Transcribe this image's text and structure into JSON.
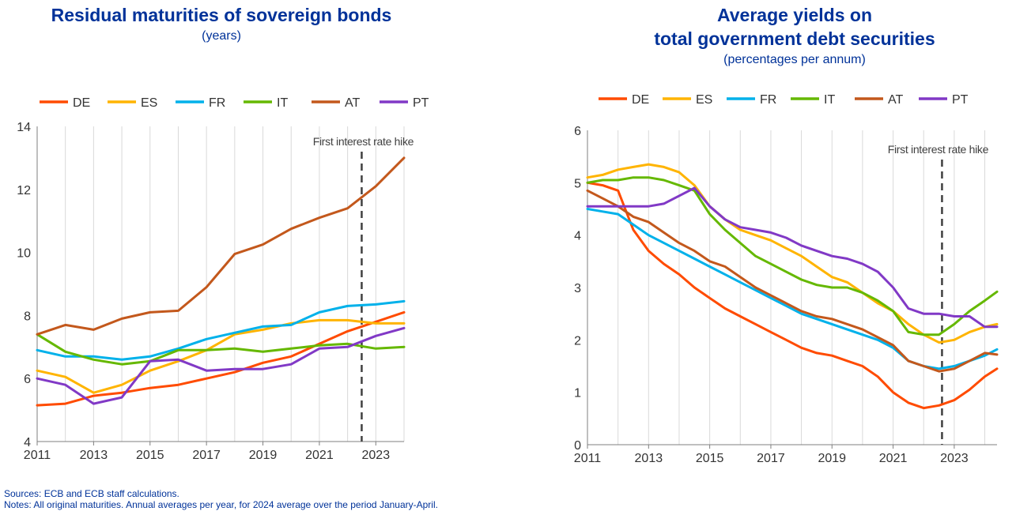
{
  "left_panel": {
    "title": "Residual maturities of sovereign bonds",
    "subtitle": "(years)"
  },
  "right_panel": {
    "title_line1": "Average yields on",
    "title_line2": "total government debt securities",
    "subtitle": "(percentages per annum)"
  },
  "footer": {
    "sources": "Sources: ECB and ECB staff calculations.",
    "notes": "Notes: All original maturities. Annual averages per year, for 2024 average over the period January-April."
  },
  "colors": {
    "DE": "#ff4b00",
    "ES": "#ffb400",
    "FR": "#00b1ea",
    "IT": "#65b800",
    "AT": "#c3581c",
    "PT": "#8139c6"
  },
  "chart_data": [
    {
      "type": "line",
      "title": "Residual maturities of sovereign bonds",
      "subtitle": "(years)",
      "x": [
        2011,
        2012,
        2013,
        2014,
        2015,
        2016,
        2017,
        2018,
        2019,
        2020,
        2021,
        2022,
        2023,
        2024
      ],
      "xticks": [
        "2011",
        "2013",
        "2015",
        "2017",
        "2019",
        "2021",
        "2023"
      ],
      "xlim": [
        2011,
        2024
      ],
      "ylim": [
        4,
        14
      ],
      "yticks": [
        4,
        6,
        8,
        10,
        12,
        14
      ],
      "grid": "vertical",
      "legend": "top",
      "annotation": {
        "text": "First interest rate hike",
        "x": 2022.5
      },
      "series": [
        {
          "name": "DE",
          "values": [
            5.15,
            5.2,
            5.45,
            5.55,
            5.7,
            5.8,
            6.0,
            6.2,
            6.5,
            6.7,
            7.1,
            7.5,
            7.8,
            8.1
          ]
        },
        {
          "name": "ES",
          "values": [
            6.25,
            6.05,
            5.55,
            5.8,
            6.25,
            6.55,
            6.9,
            7.4,
            7.55,
            7.75,
            7.85,
            7.85,
            7.75,
            7.75
          ]
        },
        {
          "name": "FR",
          "values": [
            6.9,
            6.7,
            6.7,
            6.6,
            6.7,
            6.95,
            7.25,
            7.45,
            7.65,
            7.7,
            8.1,
            8.3,
            8.35,
            8.45
          ]
        },
        {
          "name": "IT",
          "values": [
            7.4,
            6.85,
            6.6,
            6.45,
            6.55,
            6.9,
            6.9,
            6.95,
            6.85,
            6.95,
            7.05,
            7.1,
            6.95,
            7.0
          ]
        },
        {
          "name": "AT",
          "values": [
            7.4,
            7.7,
            7.55,
            7.9,
            8.1,
            8.15,
            8.9,
            9.95,
            10.25,
            10.75,
            11.1,
            11.4,
            12.1,
            13.0
          ]
        },
        {
          "name": "PT",
          "values": [
            6.0,
            5.8,
            5.2,
            5.4,
            6.55,
            6.6,
            6.25,
            6.3,
            6.3,
            6.45,
            6.95,
            7.0,
            7.35,
            7.6
          ]
        }
      ]
    },
    {
      "type": "line",
      "title": "Average yields on total government debt securities",
      "subtitle": "(percentages per annum)",
      "xticks": [
        "2011",
        "2013",
        "2015",
        "2017",
        "2019",
        "2021",
        "2023"
      ],
      "xlim": [
        2011,
        2024.4
      ],
      "ylim": [
        0,
        6
      ],
      "yticks": [
        0,
        1,
        2,
        3,
        4,
        5,
        6
      ],
      "grid": "vertical",
      "legend": "top",
      "annotation": {
        "text": "First interest rate hike",
        "x": 2022.6
      },
      "series": [
        {
          "name": "DE",
          "x": [
            2011,
            2011.5,
            2012,
            2012.5,
            2013,
            2013.5,
            2014,
            2014.5,
            2015,
            2015.5,
            2016,
            2016.5,
            2017,
            2017.5,
            2018,
            2018.5,
            2019,
            2019.5,
            2020,
            2020.5,
            2021,
            2021.5,
            2022,
            2022.5,
            2023,
            2023.5,
            2024,
            2024.4
          ],
          "values": [
            5.0,
            4.95,
            4.85,
            4.1,
            3.7,
            3.45,
            3.25,
            3.0,
            2.8,
            2.6,
            2.45,
            2.3,
            2.15,
            2.0,
            1.85,
            1.75,
            1.7,
            1.6,
            1.5,
            1.3,
            1.0,
            0.8,
            0.7,
            0.75,
            0.85,
            1.05,
            1.3,
            1.45
          ]
        },
        {
          "name": "ES",
          "x": [
            2011,
            2011.5,
            2012,
            2012.5,
            2013,
            2013.5,
            2014,
            2014.5,
            2015,
            2015.5,
            2016,
            2016.5,
            2017,
            2017.5,
            2018,
            2018.5,
            2019,
            2019.5,
            2020,
            2020.5,
            2021,
            2021.5,
            2022,
            2022.5,
            2023,
            2023.5,
            2024,
            2024.4
          ],
          "values": [
            5.1,
            5.15,
            5.25,
            5.3,
            5.35,
            5.3,
            5.2,
            4.95,
            4.55,
            4.3,
            4.1,
            4.0,
            3.9,
            3.75,
            3.6,
            3.4,
            3.2,
            3.1,
            2.9,
            2.7,
            2.55,
            2.3,
            2.1,
            1.95,
            2.0,
            2.15,
            2.25,
            2.3
          ]
        },
        {
          "name": "FR",
          "x": [
            2011,
            2011.5,
            2012,
            2012.5,
            2013,
            2013.5,
            2014,
            2014.5,
            2015,
            2015.5,
            2016,
            2016.5,
            2017,
            2017.5,
            2018,
            2018.5,
            2019,
            2019.5,
            2020,
            2020.5,
            2021,
            2021.5,
            2022,
            2022.5,
            2023,
            2023.5,
            2024,
            2024.4
          ],
          "values": [
            4.5,
            4.45,
            4.4,
            4.2,
            4.0,
            3.85,
            3.7,
            3.55,
            3.4,
            3.25,
            3.1,
            2.95,
            2.8,
            2.65,
            2.5,
            2.4,
            2.3,
            2.2,
            2.1,
            2.0,
            1.85,
            1.6,
            1.5,
            1.45,
            1.5,
            1.6,
            1.7,
            1.82
          ]
        },
        {
          "name": "IT",
          "x": [
            2011,
            2011.5,
            2012,
            2012.5,
            2013,
            2013.5,
            2014,
            2014.5,
            2015,
            2015.5,
            2016,
            2016.5,
            2017,
            2017.5,
            2018,
            2018.5,
            2019,
            2019.5,
            2020,
            2020.5,
            2021,
            2021.5,
            2022,
            2022.5,
            2023,
            2023.5,
            2024,
            2024.4
          ],
          "values": [
            5.0,
            5.05,
            5.05,
            5.1,
            5.1,
            5.05,
            4.95,
            4.85,
            4.4,
            4.1,
            3.85,
            3.6,
            3.45,
            3.3,
            3.15,
            3.05,
            3.0,
            3.0,
            2.9,
            2.75,
            2.55,
            2.15,
            2.1,
            2.1,
            2.3,
            2.55,
            2.75,
            2.92
          ]
        },
        {
          "name": "AT",
          "x": [
            2011,
            2011.5,
            2012,
            2012.5,
            2013,
            2013.5,
            2014,
            2014.5,
            2015,
            2015.5,
            2016,
            2016.5,
            2017,
            2017.5,
            2018,
            2018.5,
            2019,
            2019.5,
            2020,
            2020.5,
            2021,
            2021.5,
            2022,
            2022.5,
            2023,
            2023.5,
            2024,
            2024.4
          ],
          "values": [
            4.85,
            4.7,
            4.55,
            4.35,
            4.25,
            4.05,
            3.85,
            3.7,
            3.5,
            3.4,
            3.2,
            3.0,
            2.85,
            2.7,
            2.55,
            2.45,
            2.4,
            2.3,
            2.2,
            2.05,
            1.9,
            1.6,
            1.5,
            1.4,
            1.45,
            1.6,
            1.75,
            1.72
          ]
        },
        {
          "name": "PT",
          "x": [
            2011,
            2011.5,
            2012,
            2012.5,
            2013,
            2013.5,
            2014,
            2014.5,
            2015,
            2015.5,
            2016,
            2016.5,
            2017,
            2017.5,
            2018,
            2018.5,
            2019,
            2019.5,
            2020,
            2020.5,
            2021,
            2021.5,
            2022,
            2022.5,
            2023,
            2023.5,
            2024,
            2024.4
          ],
          "values": [
            4.55,
            4.55,
            4.55,
            4.55,
            4.55,
            4.6,
            4.75,
            4.9,
            4.55,
            4.3,
            4.15,
            4.1,
            4.05,
            3.95,
            3.8,
            3.7,
            3.6,
            3.55,
            3.45,
            3.3,
            3.0,
            2.6,
            2.5,
            2.5,
            2.45,
            2.45,
            2.25,
            2.25
          ]
        }
      ]
    }
  ]
}
